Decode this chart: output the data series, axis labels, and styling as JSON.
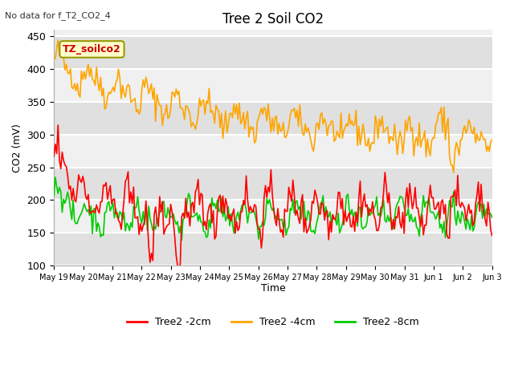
{
  "title": "Tree 2 Soil CO2",
  "subtitle": "No data for f_T2_CO2_4",
  "ylabel": "CO2 (mV)",
  "xlabel": "Time",
  "ylim": [
    100,
    460
  ],
  "yticks": [
    100,
    150,
    200,
    250,
    300,
    350,
    400,
    450
  ],
  "legend_entries": [
    "Tree2 -2cm",
    "Tree2 -4cm",
    "Tree2 -8cm"
  ],
  "legend_colors": [
    "#ff0000",
    "#ffa500",
    "#00cc00"
  ],
  "box_label": "TZ_soilco2",
  "box_color": "#ffffcc",
  "box_edge": "#999900",
  "background_color": "#ffffff",
  "plot_bg_color": "#f0f0f0",
  "grid_color": "#ffffff",
  "xtick_labels": [
    "May 19",
    "May 20",
    "May 21",
    "May 22",
    "May 23",
    "May 24",
    "May 25",
    "May 26",
    "May 27",
    "May 28",
    "May 29",
    "May 30",
    "May 31",
    "Jun 1",
    "Jun 2",
    "Jun 3"
  ],
  "n_points": 320
}
